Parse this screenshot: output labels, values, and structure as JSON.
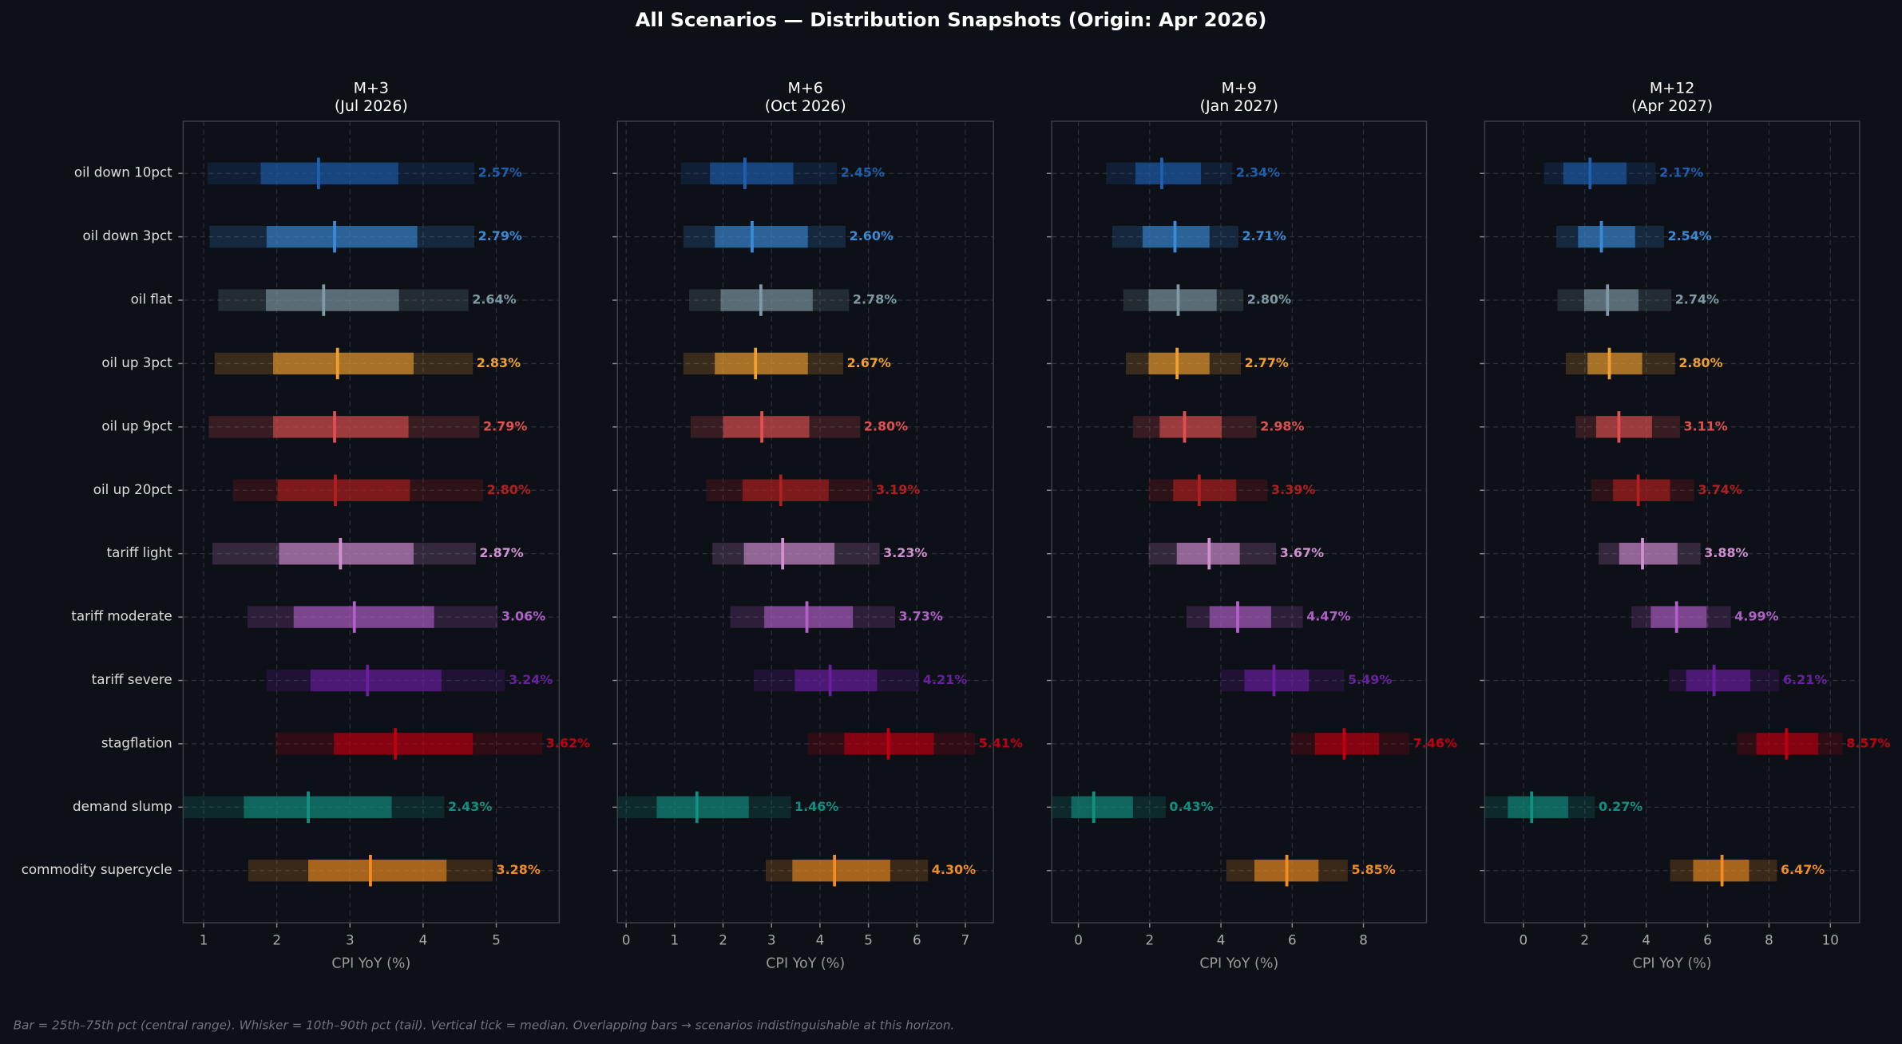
{
  "title": "All Scenarios — Distribution Snapshots  (Origin: Apr 2026)",
  "footnote": "Bar = 25th–75th pct (central range).  Whisker = 10th–90th pct (tail).  Vertical tick = median.  Overlapping bars → scenarios indistinguishable at this horizon.",
  "chart_data": [
    {
      "type": "interval",
      "title": "M+3",
      "subtitle": "(Jul 2026)",
      "xlabel": "CPI YoY (%)",
      "grid": true,
      "categories": [
        "oil down 10pct",
        "oil down 3pct",
        "oil flat",
        "oil up 3pct",
        "oil up 9pct",
        "oil up 20pct",
        "tariff light",
        "tariff moderate",
        "tariff severe",
        "stagflation",
        "demand slump",
        "commodity supercycle"
      ],
      "colors": [
        "#1f5fb0",
        "#3a8ad6",
        "#7f9aa5",
        "#f0a030",
        "#e05050",
        "#b02020",
        "#d090d0",
        "#b060c8",
        "#6a1fa0",
        "#c00010",
        "#109080",
        "#f08c20"
      ],
      "xlim": [
        0.72,
        5.86
      ],
      "xticks": [
        1,
        2,
        3,
        4,
        5
      ],
      "p10": [
        1.05,
        1.08,
        1.2,
        1.15,
        1.07,
        1.4,
        1.12,
        1.6,
        1.86,
        1.98,
        0.72,
        1.61
      ],
      "p25": [
        1.78,
        1.86,
        1.85,
        1.95,
        1.95,
        2.01,
        2.03,
        2.23,
        2.46,
        2.78,
        1.55,
        2.43
      ],
      "median": [
        2.57,
        2.79,
        2.64,
        2.83,
        2.79,
        2.8,
        2.87,
        3.06,
        3.24,
        3.62,
        2.43,
        3.28
      ],
      "p75": [
        3.66,
        3.92,
        3.67,
        3.87,
        3.8,
        3.82,
        3.87,
        4.15,
        4.25,
        4.68,
        3.57,
        4.32
      ],
      "p90": [
        4.7,
        4.7,
        4.62,
        4.68,
        4.77,
        4.82,
        4.72,
        5.02,
        5.12,
        5.63,
        4.29,
        4.95
      ],
      "value_labels": [
        "2.57%",
        "2.79%",
        "2.64%",
        "2.83%",
        "2.79%",
        "2.80%",
        "2.87%",
        "3.06%",
        "3.24%",
        "3.62%",
        "2.43%",
        "3.28%"
      ]
    },
    {
      "type": "interval",
      "title": "M+6",
      "subtitle": "(Oct 2026)",
      "xlabel": "CPI YoY (%)",
      "grid": true,
      "xlim": [
        -0.18,
        7.58
      ],
      "xticks": [
        0,
        1,
        2,
        3,
        4,
        5,
        6,
        7
      ],
      "p10": [
        1.13,
        1.18,
        1.3,
        1.18,
        1.33,
        1.65,
        1.78,
        2.15,
        2.63,
        3.75,
        -0.18,
        2.88
      ],
      "p25": [
        1.73,
        1.83,
        1.95,
        1.83,
        2.0,
        2.4,
        2.43,
        2.85,
        3.48,
        4.5,
        0.63,
        3.43
      ],
      "median": [
        2.45,
        2.6,
        2.78,
        2.67,
        2.8,
        3.19,
        3.23,
        3.73,
        4.21,
        5.41,
        1.46,
        4.3
      ],
      "p75": [
        3.45,
        3.75,
        3.85,
        3.75,
        3.78,
        4.18,
        4.3,
        4.68,
        5.18,
        6.35,
        2.53,
        5.45
      ],
      "p90": [
        4.35,
        4.53,
        4.6,
        4.48,
        4.83,
        5.08,
        5.23,
        5.55,
        6.05,
        7.2,
        3.4,
        6.23
      ],
      "value_labels": [
        "2.45%",
        "2.60%",
        "2.78%",
        "2.67%",
        "2.80%",
        "3.19%",
        "3.23%",
        "3.73%",
        "4.21%",
        "5.41%",
        "1.46%",
        "4.30%"
      ]
    },
    {
      "type": "interval",
      "title": "M+9",
      "subtitle": "(Jan 2027)",
      "xlabel": "CPI YoY (%)",
      "grid": true,
      "xlim": [
        -0.75,
        9.77
      ],
      "xticks": [
        0,
        2,
        4,
        6,
        8
      ],
      "p10": [
        0.78,
        0.95,
        1.26,
        1.33,
        1.53,
        1.97,
        1.97,
        3.03,
        3.98,
        5.96,
        -0.75,
        4.15
      ],
      "p25": [
        1.6,
        1.8,
        1.97,
        1.97,
        2.28,
        2.66,
        2.76,
        3.68,
        4.66,
        6.64,
        -0.2,
        4.94
      ],
      "median": [
        2.34,
        2.71,
        2.8,
        2.77,
        2.98,
        3.39,
        3.67,
        4.47,
        5.49,
        7.46,
        0.43,
        5.85
      ],
      "p75": [
        3.44,
        3.68,
        3.88,
        3.68,
        4.02,
        4.43,
        4.53,
        5.41,
        6.47,
        8.44,
        1.53,
        6.74
      ],
      "p90": [
        4.32,
        4.49,
        4.63,
        4.56,
        5.0,
        5.31,
        5.55,
        6.3,
        7.46,
        9.29,
        2.45,
        7.56
      ],
      "value_labels": [
        "2.34%",
        "2.71%",
        "2.80%",
        "2.77%",
        "2.98%",
        "3.39%",
        "3.67%",
        "4.47%",
        "5.49%",
        "7.46%",
        "0.43%",
        "5.85%"
      ]
    },
    {
      "type": "interval",
      "title": "M+12",
      "subtitle": "(Apr 2027)",
      "xlabel": "CPI YoY (%)",
      "grid": true,
      "xlim": [
        -1.26,
        10.95
      ],
      "xticks": [
        0,
        2,
        4,
        6,
        8,
        10
      ],
      "p10": [
        0.67,
        1.07,
        1.11,
        1.38,
        1.7,
        2.21,
        2.45,
        3.52,
        4.74,
        6.96,
        -1.26,
        4.78
      ],
      "p25": [
        1.3,
        1.78,
        1.98,
        2.09,
        2.37,
        2.92,
        3.12,
        4.15,
        5.3,
        7.59,
        -0.51,
        5.53
      ],
      "median": [
        2.17,
        2.54,
        2.74,
        2.8,
        3.11,
        3.74,
        3.88,
        4.99,
        6.21,
        8.57,
        0.27,
        6.47
      ],
      "p75": [
        3.36,
        3.64,
        3.75,
        3.87,
        4.19,
        4.78,
        5.02,
        5.97,
        7.39,
        9.6,
        1.46,
        7.35
      ],
      "p90": [
        4.31,
        4.58,
        4.82,
        4.94,
        5.1,
        5.57,
        5.77,
        6.76,
        8.34,
        10.4,
        2.33,
        8.26
      ],
      "value_labels": [
        "2.17%",
        "2.54%",
        "2.74%",
        "2.80%",
        "3.11%",
        "3.74%",
        "3.88%",
        "4.99%",
        "6.21%",
        "8.57%",
        "0.27%",
        "6.47%"
      ]
    }
  ]
}
